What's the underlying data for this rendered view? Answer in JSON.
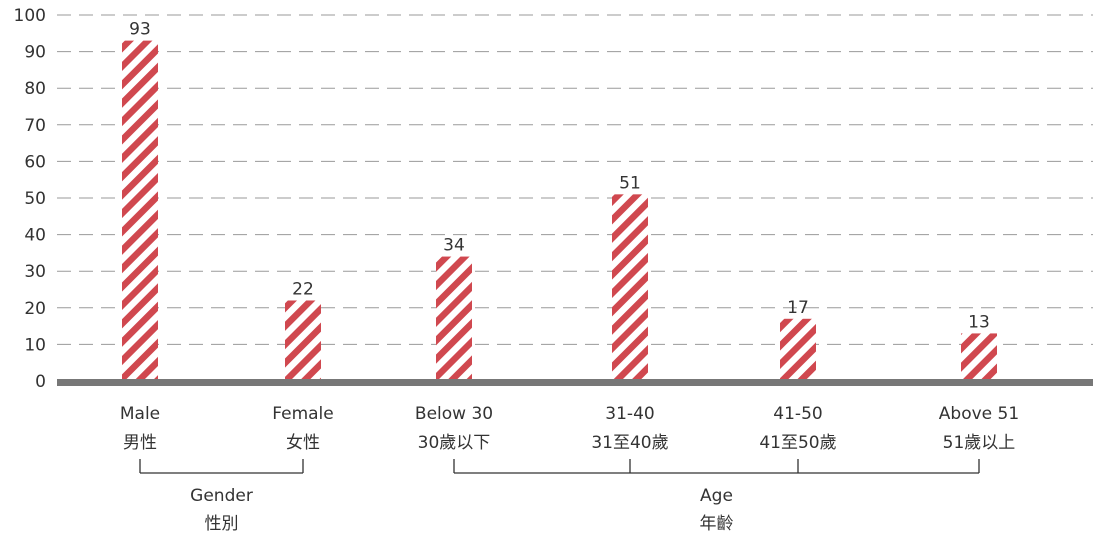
{
  "chart_data": {
    "type": "bar",
    "categories": [
      {
        "en": "Male",
        "zh": "男性"
      },
      {
        "en": "Female",
        "zh": "女性"
      },
      {
        "en": "Below 30",
        "zh": "30歲以下"
      },
      {
        "en": "31-40",
        "zh": "31至40歲"
      },
      {
        "en": "41-50",
        "zh": "41至50歲"
      },
      {
        "en": "Above 51",
        "zh": "51歲以上"
      }
    ],
    "values": [
      93,
      22,
      34,
      51,
      17,
      13
    ],
    "ylim": [
      0,
      100
    ],
    "yticks": [
      "0",
      "10",
      "20",
      "30",
      "40",
      "50",
      "60",
      "70",
      "80",
      "90",
      "100"
    ],
    "grid": true,
    "bar_pattern": "diagonal-stripes",
    "groups": [
      {
        "en": "Gender",
        "zh": "性別",
        "categories": [
          0,
          1
        ]
      },
      {
        "en": "Age",
        "zh": "年齡",
        "categories": [
          2,
          3,
          4,
          5
        ]
      }
    ],
    "colors": {
      "bar_stripe": "#d0484f",
      "baseline": "#777777",
      "grid": "#9a9a9a",
      "text": "#333333"
    }
  }
}
